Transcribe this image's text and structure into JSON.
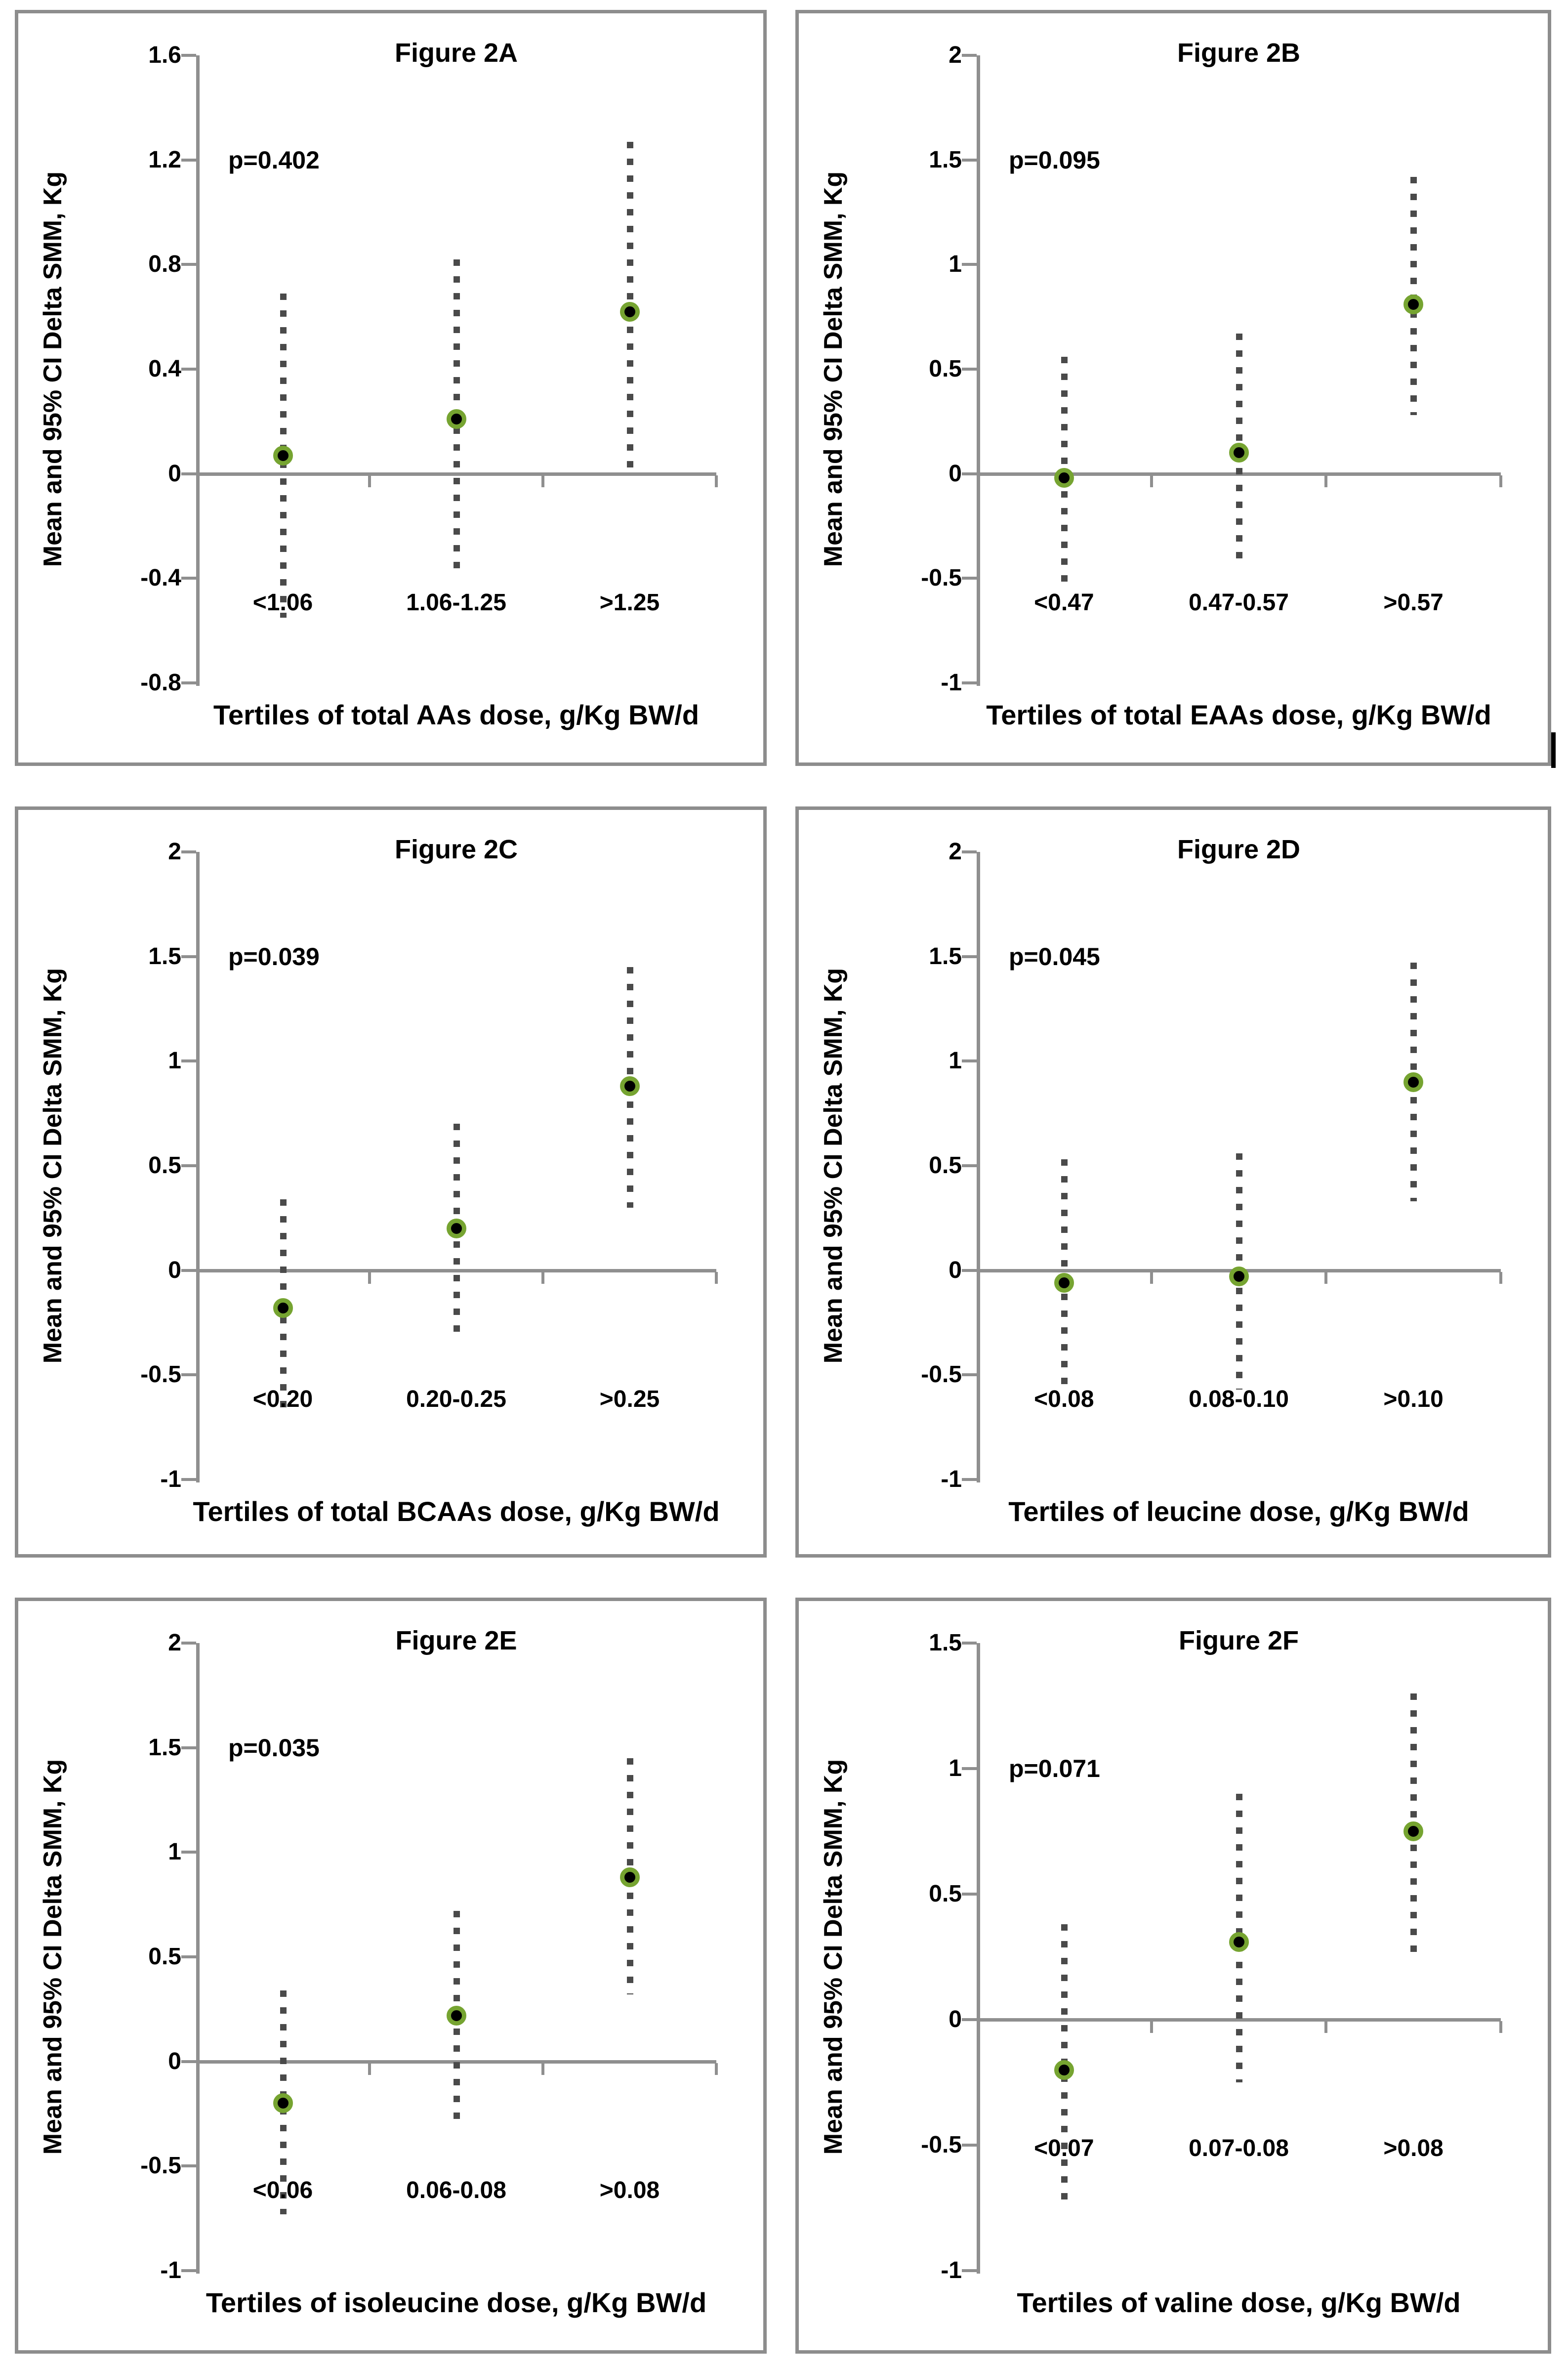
{
  "figure": {
    "ylabel": "Mean and 95% CI Delta SMM, Kg",
    "marker_ring_color": "#76a431",
    "marker_core_color": "#000000",
    "ci_dash_color": "#4a4a4a",
    "axis_color": "#8f8f8f",
    "panel_border_color": "#8d8d8d"
  },
  "chart_data": [
    {
      "type": "scatter",
      "title": "Figure 2A",
      "p_label": "p=0.402",
      "xlabel": "Tertiles of total AAs dose, g/Kg BW/d",
      "ylabel": "Mean and 95% CI Delta SMM, Kg",
      "categories": [
        "<1.06",
        "1.06-1.25",
        ">1.25"
      ],
      "means": [
        0.07,
        0.21,
        0.62
      ],
      "ci_low": [
        -0.55,
        -0.38,
        0.02
      ],
      "ci_high": [
        0.69,
        0.82,
        1.27
      ],
      "yticks": [
        1.6,
        1.2,
        0.8,
        0.4,
        0,
        -0.4,
        -0.8
      ],
      "ytick_labels": [
        "1.6",
        "1.2",
        "0.8",
        "0.4",
        "0",
        "-0.4",
        "-0.8"
      ],
      "ylim": [
        -0.8,
        1.6
      ],
      "grid": false,
      "legend": null
    },
    {
      "type": "scatter",
      "title": "Figure 2B",
      "p_label": "p=0.095",
      "xlabel": "Tertiles of total EAAs dose, g/Kg BW/d",
      "ylabel": "Mean and 95% CI Delta SMM, Kg",
      "categories": [
        "<0.47",
        "0.47-0.57",
        ">0.57"
      ],
      "means": [
        -0.02,
        0.1,
        0.81
      ],
      "ci_low": [
        -0.53,
        -0.41,
        0.28
      ],
      "ci_high": [
        0.56,
        0.67,
        1.42
      ],
      "yticks": [
        2,
        1.5,
        1,
        0.5,
        0,
        -0.5,
        -1
      ],
      "ytick_labels": [
        "2",
        "1.5",
        "1",
        "0.5",
        "0",
        "-0.5",
        "-1"
      ],
      "ylim": [
        -1,
        2
      ],
      "grid": false,
      "legend": null
    },
    {
      "type": "scatter",
      "title": "Figure 2C",
      "p_label": "p=0.039",
      "xlabel": "Tertiles of total BCAAs dose, g/Kg BW/d",
      "ylabel": "Mean and 95% CI Delta SMM, Kg",
      "categories": [
        "<0.20",
        "0.20-0.25",
        ">0.25"
      ],
      "means": [
        -0.18,
        0.2,
        0.88
      ],
      "ci_low": [
        -0.7,
        -0.31,
        0.3
      ],
      "ci_high": [
        0.34,
        0.7,
        1.45
      ],
      "yticks": [
        2,
        1.5,
        1,
        0.5,
        0,
        -0.5,
        -1
      ],
      "ytick_labels": [
        "2",
        "1.5",
        "1",
        "0.5",
        "0",
        "-0.5",
        "-1"
      ],
      "ylim": [
        -1,
        2
      ],
      "grid": false,
      "legend": null
    },
    {
      "type": "scatter",
      "title": "Figure 2D",
      "p_label": "p=0.045",
      "xlabel": "Tertiles of leucine dose, g/Kg BW/d",
      "ylabel": "Mean and 95% CI Delta SMM, Kg",
      "categories": [
        "<0.08",
        "0.08-0.10",
        ">0.10"
      ],
      "means": [
        -0.06,
        -0.03,
        0.9
      ],
      "ci_low": [
        -0.58,
        -0.57,
        0.33
      ],
      "ci_high": [
        0.53,
        0.56,
        1.47
      ],
      "yticks": [
        2,
        1.5,
        1,
        0.5,
        0,
        -0.5,
        -1
      ],
      "ytick_labels": [
        "2",
        "1.5",
        "1",
        "0.5",
        "0",
        "-0.5",
        "-1"
      ],
      "ylim": [
        -1,
        2
      ],
      "grid": false,
      "legend": null
    },
    {
      "type": "scatter",
      "title": "Figure 2E",
      "p_label": "p=0.035",
      "xlabel": "Tertiles of isoleucine dose, g/Kg BW/d",
      "ylabel": "Mean and 95% CI Delta SMM, Kg",
      "categories": [
        "<0.06",
        "0.06-0.08",
        ">0.08"
      ],
      "means": [
        -0.2,
        0.22,
        0.88
      ],
      "ci_low": [
        -0.73,
        -0.28,
        0.32
      ],
      "ci_high": [
        0.34,
        0.72,
        1.45
      ],
      "yticks": [
        2,
        1.5,
        1,
        0.5,
        0,
        -0.5,
        -1
      ],
      "ytick_labels": [
        "2",
        "1.5",
        "1",
        "0.5",
        "0",
        "-0.5",
        "-1"
      ],
      "ylim": [
        -1,
        2
      ],
      "grid": false,
      "legend": null
    },
    {
      "type": "scatter",
      "title": "Figure 2F",
      "p_label": "p=0.071",
      "xlabel": "Tertiles of valine dose, g/Kg BW/d",
      "ylabel": "Mean and 95% CI Delta SMM, Kg",
      "categories": [
        "<0.07",
        "0.07-0.08",
        ">0.08"
      ],
      "means": [
        -0.2,
        0.31,
        0.75
      ],
      "ci_low": [
        -0.74,
        -0.25,
        0.23
      ],
      "ci_high": [
        0.38,
        0.9,
        1.3
      ],
      "yticks": [
        1.5,
        1,
        0.5,
        0,
        -0.5,
        -1
      ],
      "ytick_labels": [
        "1.5",
        "1",
        "0.5",
        "0",
        "-0.5",
        "-1"
      ],
      "ylim": [
        -1,
        1.5
      ],
      "grid": false,
      "legend": null
    }
  ]
}
